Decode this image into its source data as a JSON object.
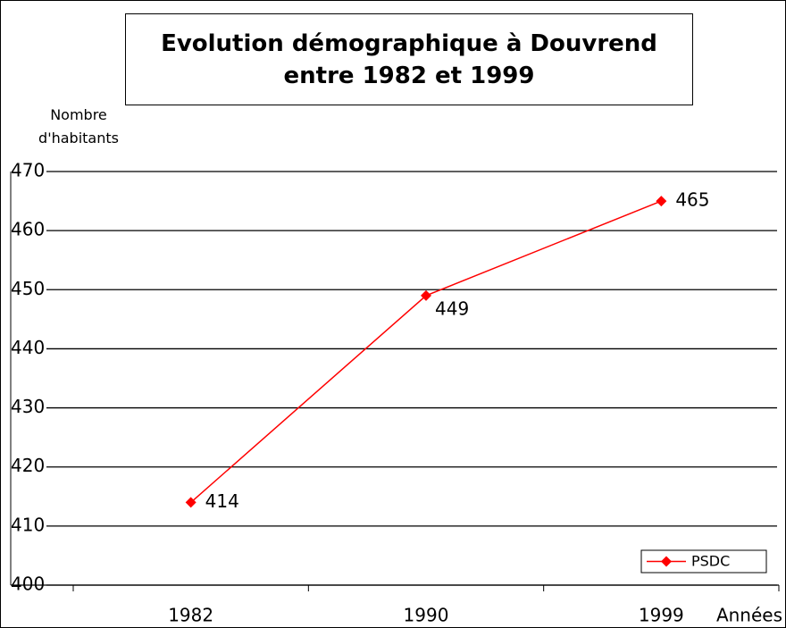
{
  "chart_data": {
    "type": "line",
    "title": "Evolution démographique à Douvrend entre 1982 et 1999",
    "y_label": "Nombre d'habitants",
    "x_label": "Années",
    "categories": [
      "1982",
      "1990",
      "1999"
    ],
    "series": [
      {
        "name": "PSDC",
        "color": "#ff0000",
        "values": [
          414,
          449,
          465
        ]
      }
    ],
    "ylim": [
      400,
      470
    ],
    "yticks": [
      400,
      410,
      420,
      430,
      440,
      450,
      460,
      470
    ],
    "grid": true,
    "legend": "bottom-right"
  }
}
